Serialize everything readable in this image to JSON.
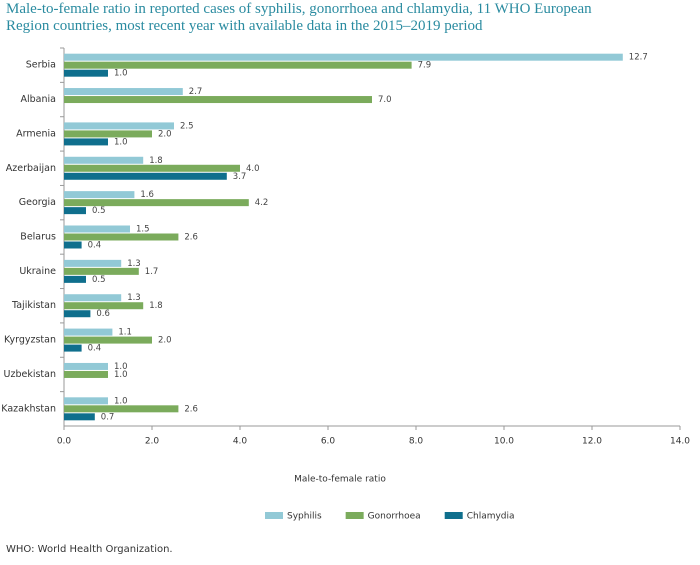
{
  "chart_data": {
    "type": "hbar",
    "title": "Male-to-female ratio in reported cases of syphilis, gonorrhoea and chlamydia, 11 WHO European Region countries, most recent year with available data in the 2015–2019 period",
    "categories": [
      "Serbia",
      "Albania",
      "Armenia",
      "Azerbaijan",
      "Georgia",
      "Belarus",
      "Ukraine",
      "Tajikistan",
      "Kyrgyzstan",
      "Uzbekistan",
      "Kazakhstan"
    ],
    "series": [
      {
        "name": "Syphilis",
        "color": "#92c9d6",
        "values": [
          12.7,
          2.7,
          2.5,
          1.8,
          1.6,
          1.5,
          1.3,
          1.3,
          1.1,
          1.0,
          1.0
        ],
        "value_labels": [
          "12.7",
          "2.7",
          "2.5",
          "1.8",
          "1.6",
          "1.5",
          "1.3",
          "1.3",
          "1.1",
          "1.0",
          "1.0"
        ]
      },
      {
        "name": "Gonorrhoea",
        "color": "#7bab5c",
        "values": [
          7.9,
          7.0,
          2.0,
          4.0,
          4.2,
          2.6,
          1.7,
          1.8,
          2.0,
          1.0,
          2.6
        ],
        "value_labels": [
          "7.9",
          "7.0",
          "2.0",
          "4.0",
          "4.2",
          "2.6",
          "1.7",
          "1.8",
          "2.0",
          "1.0",
          "2.6"
        ]
      },
      {
        "name": "Chlamydia",
        "color": "#0f6f8d",
        "values": [
          1.0,
          null,
          1.0,
          3.7,
          0.5,
          0.4,
          0.5,
          0.6,
          0.4,
          null,
          0.7
        ],
        "value_labels": [
          "1.0",
          null,
          "1.0",
          "3.7",
          "0.5",
          "0.4",
          "0.5",
          "0.6",
          "0.4",
          null,
          "0.7"
        ]
      }
    ],
    "xlabel": "Male-to-female ratio",
    "xlim": [
      0,
      14
    ],
    "xticks": [
      {
        "value": 0,
        "label": "0.0"
      },
      {
        "value": 2,
        "label": "2.0"
      },
      {
        "value": 4,
        "label": "4.0"
      },
      {
        "value": 6,
        "label": "6.0"
      },
      {
        "value": 8,
        "label": "8.0"
      },
      {
        "value": 10,
        "label": "10.0"
      },
      {
        "value": 12,
        "label": "12.0"
      },
      {
        "value": 14,
        "label": "14.0"
      }
    ],
    "grid": false,
    "legend": "bottom"
  },
  "footnote": "WHO: World Health Organization."
}
